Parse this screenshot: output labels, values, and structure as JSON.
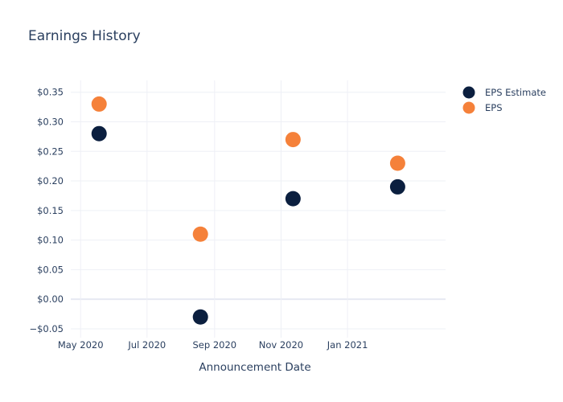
{
  "chart_data": {
    "type": "scatter",
    "title": "Earnings History",
    "xlabel": "Announcement Date",
    "ylabel": "",
    "x_axis_type": "date",
    "xlim": [
      "2020-04-22",
      "2021-04-01"
    ],
    "ylim": [
      -0.065,
      0.37
    ],
    "x_ticks": [
      {
        "value": "2020-05-01",
        "label": "May 2020"
      },
      {
        "value": "2020-07-01",
        "label": "Jul 2020"
      },
      {
        "value": "2020-09-01",
        "label": "Sep 2020"
      },
      {
        "value": "2020-11-01",
        "label": "Nov 2020"
      },
      {
        "value": "2021-01-01",
        "label": "Jan 2021"
      }
    ],
    "y_ticks": [
      {
        "value": 0.35,
        "label": "$0.35"
      },
      {
        "value": 0.3,
        "label": "$0.30"
      },
      {
        "value": 0.25,
        "label": "$0.25"
      },
      {
        "value": 0.2,
        "label": "$0.20"
      },
      {
        "value": 0.15,
        "label": "$0.15"
      },
      {
        "value": 0.1,
        "label": "$0.10"
      },
      {
        "value": 0.05,
        "label": "$0.05"
      },
      {
        "value": 0.0,
        "label": "$0.00"
      },
      {
        "value": -0.05,
        "label": "−$0.05"
      }
    ],
    "grid": true,
    "legend_position": "top-right",
    "series": [
      {
        "name": "EPS Estimate",
        "color": "#0b1f3f",
        "points": [
          {
            "x": "2020-05-18",
            "y": 0.28
          },
          {
            "x": "2020-08-19",
            "y": -0.03
          },
          {
            "x": "2020-11-12",
            "y": 0.17
          },
          {
            "x": "2021-02-16",
            "y": 0.19
          }
        ]
      },
      {
        "name": "EPS",
        "color": "#f5813a",
        "points": [
          {
            "x": "2020-05-18",
            "y": 0.33
          },
          {
            "x": "2020-08-19",
            "y": 0.11
          },
          {
            "x": "2020-11-12",
            "y": 0.27
          },
          {
            "x": "2021-02-16",
            "y": 0.23
          }
        ]
      }
    ]
  }
}
